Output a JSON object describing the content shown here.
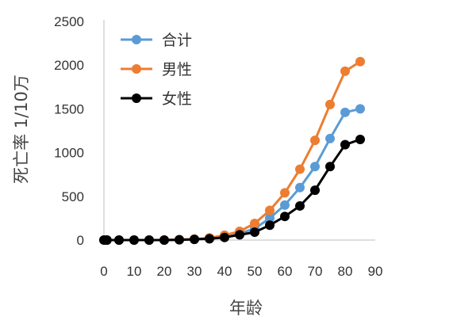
{
  "chart_data": {
    "type": "line",
    "xlabel": "年龄",
    "ylabel": "死亡率 1/10万",
    "xlim": [
      0,
      90
    ],
    "ylim": [
      0,
      2500
    ],
    "xticks": [
      0,
      10,
      20,
      30,
      40,
      50,
      60,
      70,
      80,
      90
    ],
    "yticks": [
      0,
      500,
      1000,
      1500,
      2000,
      2500
    ],
    "grid": false,
    "legend_position": "top-left",
    "x": [
      0,
      1,
      5,
      10,
      15,
      20,
      25,
      30,
      35,
      40,
      45,
      50,
      55,
      60,
      65,
      70,
      75,
      80,
      85
    ],
    "series": [
      {
        "name": "合计",
        "color": "#5b9bd5",
        "values": [
          0,
          0,
          0,
          0,
          0,
          0,
          5,
          10,
          20,
          45,
          75,
          130,
          250,
          400,
          600,
          840,
          1160,
          1460,
          1500
        ]
      },
      {
        "name": "男性",
        "color": "#ed7d31",
        "values": [
          0,
          0,
          0,
          0,
          0,
          0,
          5,
          10,
          25,
          55,
          100,
          190,
          340,
          540,
          810,
          1140,
          1550,
          1930,
          2040
        ]
      },
      {
        "name": "女性",
        "color": "#000000",
        "values": [
          0,
          0,
          0,
          0,
          0,
          0,
          3,
          8,
          15,
          30,
          60,
          90,
          170,
          270,
          390,
          570,
          840,
          1090,
          1150
        ]
      }
    ]
  }
}
